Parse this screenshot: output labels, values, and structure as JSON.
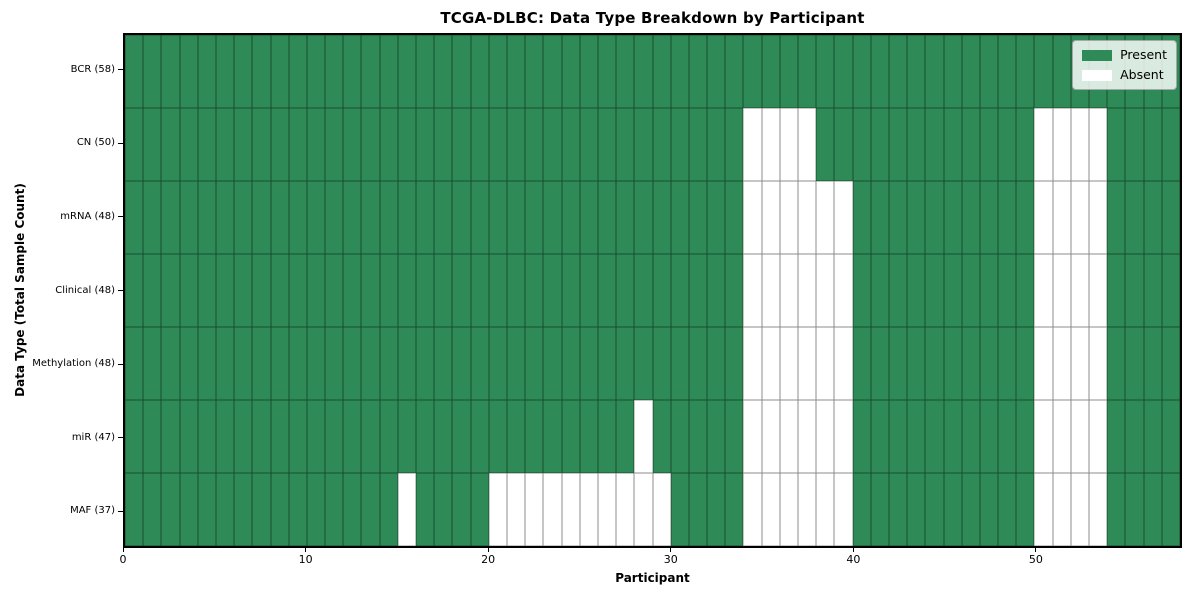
{
  "chart_data": {
    "type": "heatmap",
    "title": "TCGA-DLBC: Data Type Breakdown by Participant",
    "xlabel": "Participant",
    "ylabel": "Data Type (Total Sample Count)",
    "x_ticks": [
      0,
      10,
      20,
      30,
      40,
      50
    ],
    "x_range": [
      0,
      58
    ],
    "n_participants": 58,
    "grid_lines": "thin dark mesh between cells",
    "colors": {
      "present": "#2E8B57",
      "absent": "#ffffff"
    },
    "legend": {
      "position": "upper right",
      "entries": [
        {
          "label": "Present",
          "color": "#2E8B57"
        },
        {
          "label": "Absent",
          "color": "#ffffff"
        }
      ]
    },
    "rows": [
      {
        "label": "BCR (58)",
        "data_type": "BCR",
        "total_samples": 58,
        "absent_participants": []
      },
      {
        "label": "CN (50)",
        "data_type": "CN",
        "total_samples": 50,
        "absent_participants": [
          34,
          35,
          36,
          37,
          50,
          51,
          52,
          53
        ]
      },
      {
        "label": "mRNA (48)",
        "data_type": "mRNA",
        "total_samples": 48,
        "absent_participants": [
          34,
          35,
          36,
          37,
          38,
          39,
          50,
          51,
          52,
          53
        ]
      },
      {
        "label": "Clinical (48)",
        "data_type": "Clinical",
        "total_samples": 48,
        "absent_participants": [
          34,
          35,
          36,
          37,
          38,
          39,
          50,
          51,
          52,
          53
        ]
      },
      {
        "label": "Methylation (48)",
        "data_type": "Methylation",
        "total_samples": 48,
        "absent_participants": [
          34,
          35,
          36,
          37,
          38,
          39,
          50,
          51,
          52,
          53
        ]
      },
      {
        "label": "miR (47)",
        "data_type": "miR",
        "total_samples": 47,
        "absent_participants": [
          28,
          34,
          35,
          36,
          37,
          38,
          39,
          50,
          51,
          52,
          53
        ]
      },
      {
        "label": "MAF (37)",
        "data_type": "MAF",
        "total_samples": 37,
        "absent_participants": [
          15,
          20,
          21,
          22,
          23,
          24,
          25,
          26,
          27,
          28,
          29,
          34,
          35,
          36,
          37,
          38,
          39,
          50,
          51,
          52,
          53
        ]
      }
    ]
  }
}
